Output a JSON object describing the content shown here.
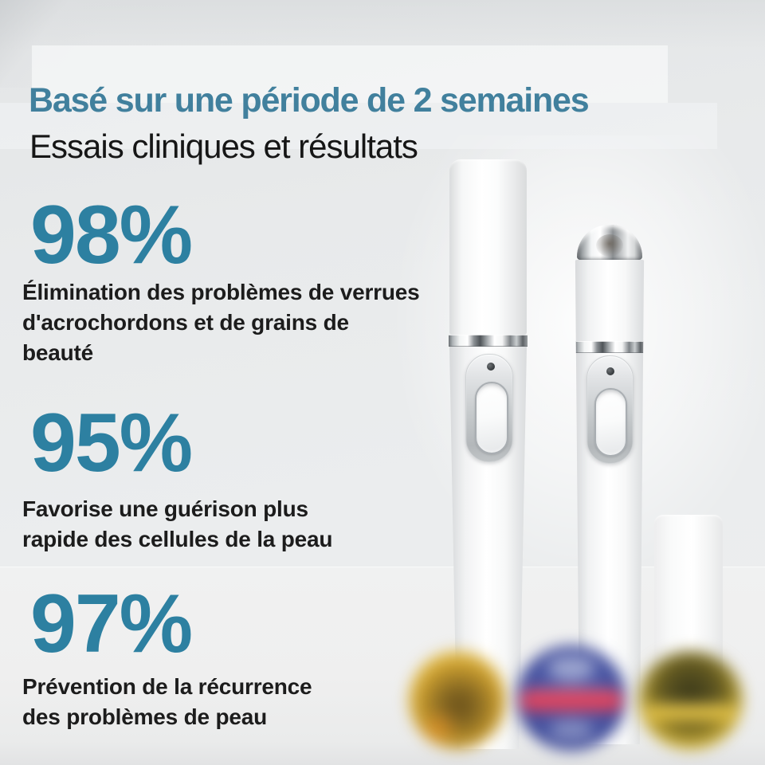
{
  "header": {
    "title": "Basé sur une période de 2 semaines",
    "subtitle": "Essais cliniques et résultats"
  },
  "stats": [
    {
      "value": "98%",
      "description": [
        "Élimination des problèmes de verrues",
        "d'acrochordons et de grains de beauté"
      ]
    },
    {
      "value": "95%",
      "description": [
        "Favorise une guérison plus",
        "rapide des cellules de la peau"
      ]
    },
    {
      "value": "97%",
      "description": [
        "Prévention de la récurrence",
        "des problèmes de peau"
      ]
    }
  ],
  "colors": {
    "title_teal": "#41809d",
    "stat_teal": "#2d80a1",
    "text_dark": "#1c1c1c",
    "background_gray": "#e8eaeb"
  },
  "product_scene": {
    "items": [
      {
        "name": "beauty-pen-capped"
      },
      {
        "name": "beauty-pen-uncapped"
      },
      {
        "name": "spare-pen-cap"
      }
    ],
    "badges": [
      {
        "name": "gold-medal-badge"
      },
      {
        "name": "blue-red-seal-badge"
      },
      {
        "name": "gold-olive-badge"
      }
    ]
  }
}
